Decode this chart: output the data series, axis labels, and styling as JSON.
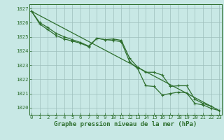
{
  "x": [
    0,
    1,
    2,
    3,
    4,
    5,
    6,
    7,
    8,
    9,
    10,
    11,
    12,
    13,
    14,
    15,
    16,
    17,
    18,
    19,
    20,
    21,
    22,
    23
  ],
  "line1": [
    1026.8,
    1025.9,
    1025.5,
    1025.1,
    1024.85,
    1024.7,
    1024.55,
    1024.3,
    1024.9,
    1024.8,
    1024.75,
    1024.65,
    1023.25,
    1022.75,
    1021.55,
    1021.5,
    1020.9,
    1021.0,
    1021.1,
    1021.05,
    1020.3,
    1020.2,
    1019.95,
    1019.8
  ],
  "line2": [
    1026.8,
    1026.0,
    1025.65,
    1025.25,
    1025.0,
    1024.8,
    1024.6,
    1024.35,
    1024.9,
    1024.8,
    1024.85,
    1024.75,
    1023.5,
    1022.85,
    1022.5,
    1022.5,
    1022.3,
    1021.5,
    1021.55,
    1021.55,
    1020.6,
    1020.3,
    1020.1,
    null
  ],
  "line3_x": [
    0,
    23
  ],
  "line3_y": [
    1026.8,
    1019.8
  ],
  "ylim": [
    1019.5,
    1027.3
  ],
  "xlim": [
    -0.3,
    23.3
  ],
  "yticks": [
    1020,
    1021,
    1022,
    1023,
    1024,
    1025,
    1026,
    1027
  ],
  "xticks": [
    0,
    1,
    2,
    3,
    4,
    5,
    6,
    7,
    8,
    9,
    10,
    11,
    12,
    13,
    14,
    15,
    16,
    17,
    18,
    19,
    20,
    21,
    22,
    23
  ],
  "xlabel": "Graphe pression niveau de la mer (hPa)",
  "line_color": "#2d6e2d",
  "bg_color": "#c8e8e5",
  "grid_color": "#9dbfbc",
  "tick_fontsize": 5.2,
  "label_fontsize": 6.5,
  "line_width": 0.9,
  "marker_size": 3.0
}
